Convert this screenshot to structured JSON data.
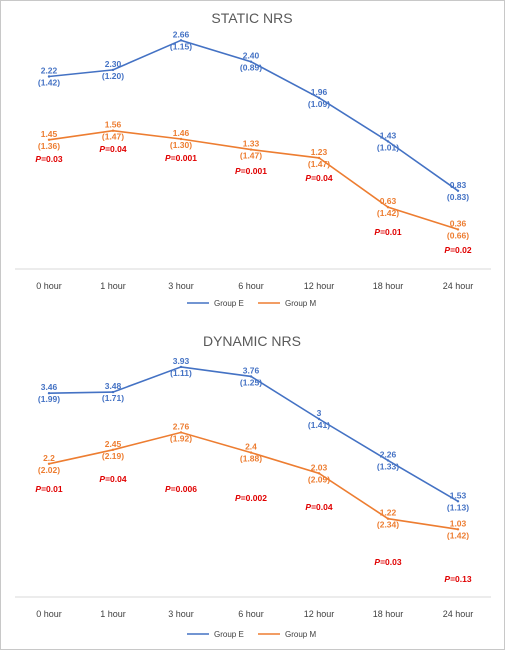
{
  "chart_data": [
    {
      "type": "line",
      "title": "STATIC NRS",
      "categories": [
        "0 hour",
        "1 hour",
        "3 hour",
        "6 hour",
        "12 hour",
        "18 hour",
        "24 hour"
      ],
      "series": [
        {
          "name": "Group E",
          "color": "#4472c4",
          "values": [
            2.22,
            2.3,
            2.66,
            2.4,
            1.96,
            1.43,
            0.83
          ],
          "labels": [
            "2.22",
            "2.30",
            "2.66",
            "2.40",
            "1.96",
            "1.43",
            "0.83"
          ],
          "sd": [
            "(1.42)",
            "(1.20)",
            "(1.15)",
            "(0.89)",
            "(1.09)",
            "(1.01)",
            "(0.83)"
          ]
        },
        {
          "name": "Group M",
          "color": "#ed7d31",
          "values": [
            1.45,
            1.56,
            1.46,
            1.33,
            1.23,
            0.63,
            0.36
          ],
          "labels": [
            "1.45",
            "1.56",
            "1.46",
            "1.33",
            "1.23",
            "0.63",
            "0.36"
          ],
          "sd": [
            "(1.36)",
            "(1.47)",
            "(1.30)",
            "(1.47)",
            "(1.47)",
            "(1.42)",
            "(0.66)"
          ]
        }
      ],
      "p_values": [
        "=0.03",
        "=0.04",
        "=0.001",
        "=0.001",
        "=0.04",
        "=0.01",
        "=0.02"
      ],
      "p_symbol": "P",
      "legend_placement": "bottom",
      "grid": false
    },
    {
      "type": "line",
      "title": "DYNAMIC NRS",
      "categories": [
        "0 hour",
        "1 hour",
        "3 hour",
        "6 hour",
        "12 hour",
        "18 hour",
        "24 hour"
      ],
      "series": [
        {
          "name": "Group E",
          "color": "#4472c4",
          "values": [
            3.46,
            3.48,
            3.93,
            3.76,
            3.0,
            2.26,
            1.53
          ],
          "labels": [
            "3.46",
            "3.48",
            "3.93",
            "3.76",
            "3",
            "2.26",
            "1.53"
          ],
          "sd": [
            "(1.99)",
            "(1.71)",
            "(1.11)",
            "(1.25)",
            "(1.41)",
            "(1.33)",
            "(1.13)"
          ]
        },
        {
          "name": "Group M",
          "color": "#ed7d31",
          "values": [
            2.2,
            2.45,
            2.76,
            2.4,
            2.03,
            1.22,
            1.03
          ],
          "labels": [
            "2.2",
            "2.45",
            "2.76",
            "2.4",
            "2.03",
            "1.22",
            "1.03"
          ],
          "sd": [
            "(2.02)",
            "(2.19)",
            "(1.92)",
            "(1.88)",
            "(2.09)",
            "(2.34)",
            "(1.42)"
          ]
        }
      ],
      "p_values": [
        "=0.01",
        "=0.04",
        "=0.006",
        "=0.002",
        "=0.04",
        "=0.03",
        "=0.13"
      ],
      "p_symbol": "P",
      "legend_placement": "bottom",
      "grid": false
    }
  ]
}
